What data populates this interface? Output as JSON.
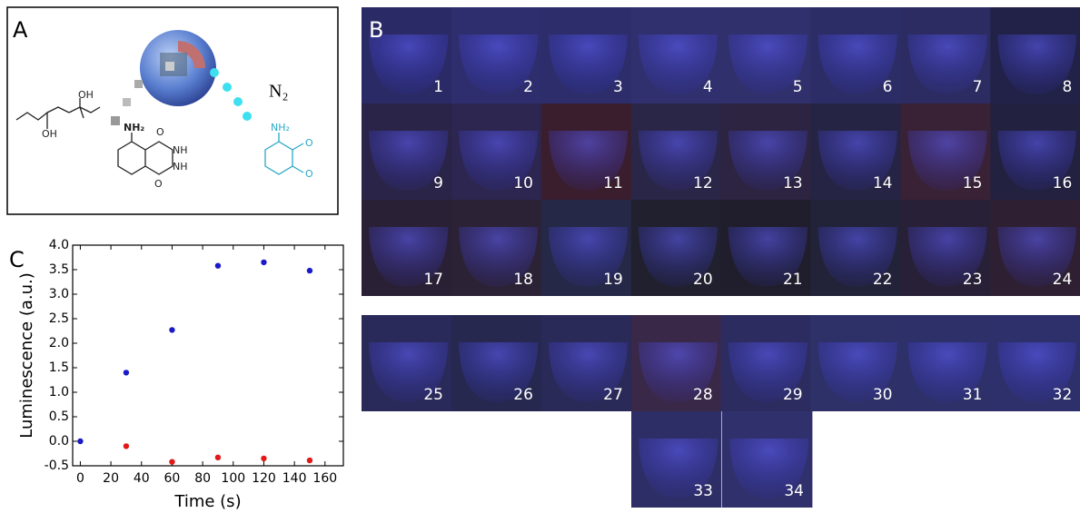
{
  "panels": {
    "a": "A",
    "b": "B",
    "c": "C"
  },
  "scheme": {
    "molecule_labels": [
      "OH",
      "OH",
      "NH₂",
      "O",
      "NH",
      "NH",
      "O"
    ],
    "product_labels": [
      "NH₂",
      "O",
      "O"
    ],
    "gas": "N₂"
  },
  "tiles": [
    {
      "label": 1,
      "color": "#2a2a66"
    },
    {
      "label": 2,
      "color": "#2e2e6e"
    },
    {
      "label": 3,
      "color": "#2c2d6a"
    },
    {
      "label": 4,
      "color": "#30306e"
    },
    {
      "label": 5,
      "color": "#30306c"
    },
    {
      "label": 6,
      "color": "#2c2d66"
    },
    {
      "label": 7,
      "color": "#2c2c62"
    },
    {
      "label": 8,
      "color": "#222248"
    },
    {
      "label": 9,
      "color": "#2a2448"
    },
    {
      "label": 10,
      "color": "#2c2650"
    },
    {
      "label": 11,
      "color": "#3a1e2e"
    },
    {
      "label": 12,
      "color": "#2a2648"
    },
    {
      "label": 13,
      "color": "#2c2440"
    },
    {
      "label": 14,
      "color": "#262444"
    },
    {
      "label": 15,
      "color": "#3a2236"
    },
    {
      "label": 16,
      "color": "#232140"
    },
    {
      "label": 17,
      "color": "#2a2036"
    },
    {
      "label": 18,
      "color": "#2c2236"
    },
    {
      "label": 19,
      "color": "#262848"
    },
    {
      "label": 20,
      "color": "#20202e"
    },
    {
      "label": 21,
      "color": "#201e2c"
    },
    {
      "label": 22,
      "color": "#222238"
    },
    {
      "label": 23,
      "color": "#282036"
    },
    {
      "label": 24,
      "color": "#2e2032"
    },
    {
      "label": 25,
      "color": "#2a2a5a"
    },
    {
      "label": 26,
      "color": "#262850"
    },
    {
      "label": 27,
      "color": "#2a2a58"
    },
    {
      "label": 28,
      "color": "#3a2848"
    },
    {
      "label": 29,
      "color": "#2c2c60"
    },
    {
      "label": 30,
      "color": "#2e3068"
    },
    {
      "label": 31,
      "color": "#2e306a"
    },
    {
      "label": 32,
      "color": "#2e306c"
    },
    {
      "label": 33,
      "color": "#2e2e66"
    },
    {
      "label": 34,
      "color": "#30306c"
    }
  ],
  "chart_data": {
    "type": "scatter",
    "xlabel": "Time (s)",
    "ylabel": "Luminescence (a.u.)",
    "xlim": [
      -5,
      172
    ],
    "ylim": [
      -0.5,
      4.0
    ],
    "xticks": [
      0,
      20,
      40,
      60,
      80,
      100,
      120,
      140,
      160
    ],
    "yticks": [
      -0.5,
      {
        "value": 0,
        "label": "0.0"
      },
      0.5,
      {
        "value": 1,
        "label": "1.0"
      },
      1.5,
      {
        "value": 2,
        "label": "2.0"
      },
      2.5,
      {
        "value": 3,
        "label": "3.0"
      },
      3.5,
      {
        "value": 4,
        "label": "4.0"
      }
    ],
    "series": [
      {
        "color": "#e01a1a",
        "x": [
          30,
          60,
          90,
          120,
          150
        ],
        "values": [
          -0.1,
          -0.42,
          -0.33,
          -0.35,
          -0.39
        ]
      },
      {
        "color": "#1a1ac8",
        "x": [
          0,
          30,
          60,
          90,
          120,
          150
        ],
        "values": [
          0,
          1.4,
          2.27,
          3.58,
          3.65,
          3.48
        ]
      }
    ]
  }
}
